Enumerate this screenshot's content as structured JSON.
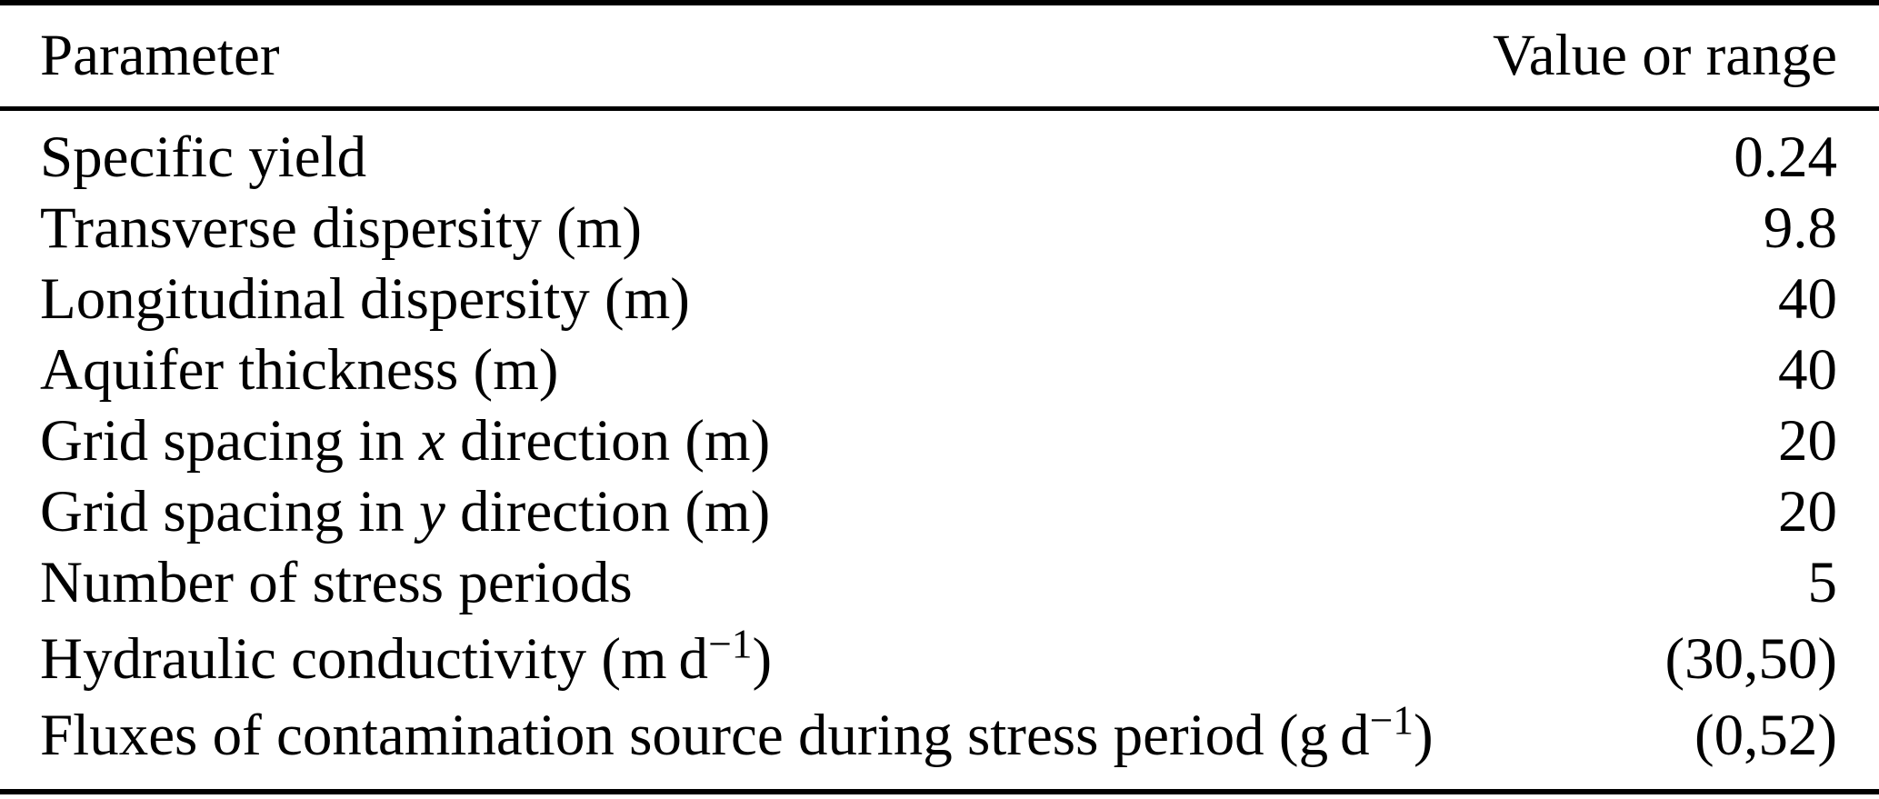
{
  "colors": {
    "background": "#ffffff",
    "text": "#000000",
    "rule": "#000000"
  },
  "table": {
    "columns": [
      {
        "label": "Parameter",
        "align": "left"
      },
      {
        "label": "Value or range",
        "align": "right"
      }
    ],
    "rows": [
      {
        "parameter": [
          {
            "text": "Specific yield"
          }
        ],
        "value": "0.24"
      },
      {
        "parameter": [
          {
            "text": "Transverse dispersity (m)"
          }
        ],
        "value": "9.8"
      },
      {
        "parameter": [
          {
            "text": "Longitudinal dispersity (m)"
          }
        ],
        "value": "40"
      },
      {
        "parameter": [
          {
            "text": "Aquifer thickness (m)"
          }
        ],
        "value": "40"
      },
      {
        "parameter": [
          {
            "text": "Grid spacing in "
          },
          {
            "text": "x",
            "style": "italic"
          },
          {
            "text": " direction (m)"
          }
        ],
        "value": "20"
      },
      {
        "parameter": [
          {
            "text": "Grid spacing in "
          },
          {
            "text": "y",
            "style": "italic"
          },
          {
            "text": " direction (m)"
          }
        ],
        "value": "20"
      },
      {
        "parameter": [
          {
            "text": "Number of stress periods"
          }
        ],
        "value": "5"
      },
      {
        "parameter": [
          {
            "text": "Hydraulic conductivity (m d"
          },
          {
            "text": "−1",
            "style": "superscript"
          },
          {
            "text": ")"
          }
        ],
        "value": "(30,50)"
      },
      {
        "parameter": [
          {
            "text": "Fluxes of contamination source during stress period (g d"
          },
          {
            "text": "−1",
            "style": "superscript"
          },
          {
            "text": ")"
          }
        ],
        "value": "(0,52)"
      }
    ]
  }
}
